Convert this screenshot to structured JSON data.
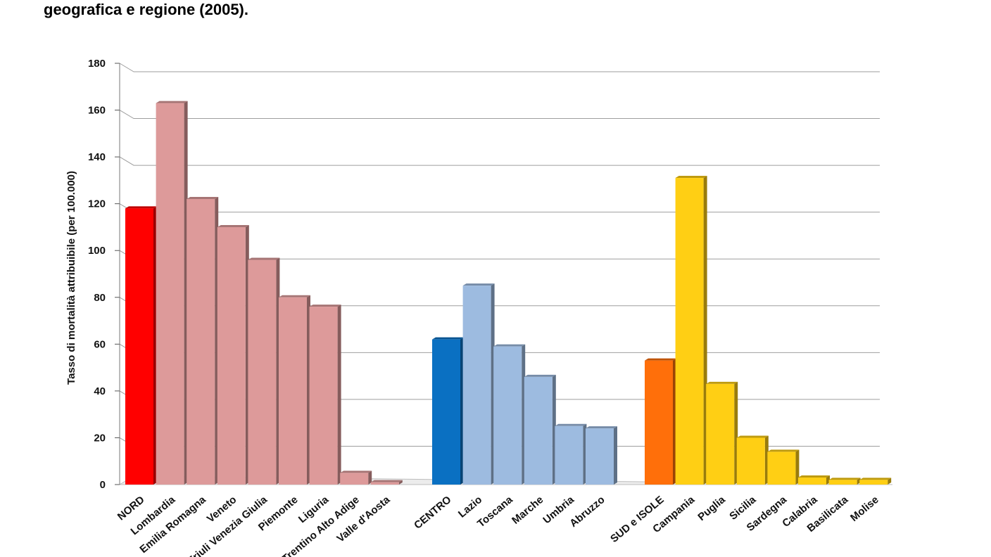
{
  "title": "geografica e regione (2005).",
  "chart_data": {
    "type": "bar",
    "title": "geografica e regione (2005).",
    "xlabel": "",
    "ylabel": "Tasso di mortalità attribuibile (per 100.000)",
    "ylim": [
      0,
      180
    ],
    "yticks": [
      0,
      20,
      40,
      60,
      80,
      100,
      120,
      140,
      160,
      180
    ],
    "grid": true,
    "categories": [
      "NORD",
      "Lombardia",
      "Emilia Romagna",
      "Veneto",
      "Friuli Venezia Giulia",
      "Piemonte",
      "Liguria",
      "Trentino Alto Adige",
      "Valle d'Aosta",
      "CENTRO",
      "Lazio",
      "Toscana",
      "Marche",
      "Umbria",
      "Abruzzo",
      "SUD e ISOLE",
      "Campania",
      "Puglia",
      "Sicilia",
      "Sardegna",
      "Calabria",
      "Basilicata",
      "Molise"
    ],
    "groups": [
      {
        "name": "NORD",
        "categories": [
          "NORD",
          "Lombardia",
          "Emilia Romagna",
          "Veneto",
          "Friuli Venezia Giulia",
          "Piemonte",
          "Liguria",
          "Trentino Alto Adige",
          "Valle d'Aosta"
        ],
        "values": [
          118,
          163,
          122,
          110,
          96,
          80,
          76,
          5,
          1
        ]
      },
      {
        "name": "CENTRO",
        "categories": [
          "CENTRO",
          "Lazio",
          "Toscana",
          "Marche",
          "Umbria",
          "Abruzzo"
        ],
        "values": [
          62,
          85,
          59,
          46,
          25,
          24
        ]
      },
      {
        "name": "SUD e ISOLE",
        "categories": [
          "SUD e ISOLE",
          "Campania",
          "Puglia",
          "Sicilia",
          "Sardegna",
          "Calabria",
          "Basilicata",
          "Molise"
        ],
        "values": [
          53,
          131,
          43,
          20,
          14,
          3,
          2,
          2
        ]
      }
    ],
    "colors": {
      "nord_total": "#ff0000",
      "nord_region": "#dd9a9a",
      "centro_total": "#0a70c2",
      "centro_region": "#9dbbe0",
      "sud_total": "#ff6f0a",
      "sud_region": "#ffcf14",
      "grid": "#9e9e9e",
      "floor": "#bdbdbd"
    }
  }
}
